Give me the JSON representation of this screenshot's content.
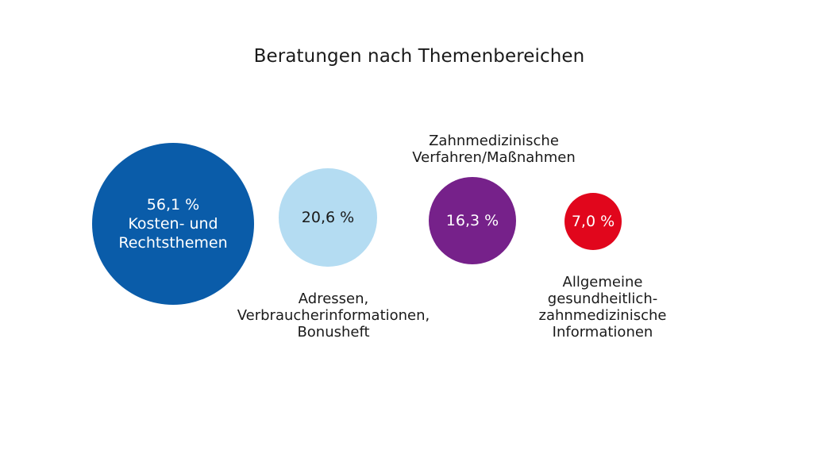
{
  "chart_data": {
    "type": "bubble",
    "title": "Beratungen nach Themenbereichen",
    "series": [
      {
        "value": 56.1,
        "value_label": "56,1 %",
        "inner_label_lines": [
          "Kosten- und",
          "Rechtsthemen"
        ],
        "outer_label_lines": [],
        "color": "#0a5ca9",
        "text_color": "#ffffff"
      },
      {
        "value": 20.6,
        "value_label": "20,6 %",
        "inner_label_lines": [],
        "outer_label_lines": [
          "Adressen,",
          "Verbraucherinformationen,",
          "Bonusheft"
        ],
        "color": "#b4dcf2",
        "text_color": "#1a1a1a"
      },
      {
        "value": 16.3,
        "value_label": "16,3 %",
        "inner_label_lines": [],
        "outer_label_lines": [
          "Zahnmedizinische",
          "Verfahren/Maßnahmen"
        ],
        "color": "#76218a",
        "text_color": "#ffffff"
      },
      {
        "value": 7.0,
        "value_label": "7,0 %",
        "inner_label_lines": [],
        "outer_label_lines": [
          "Allgemeine",
          "gesundheitlich-",
          "zahnmedizinische",
          "Informationen"
        ],
        "color": "#e1061c",
        "text_color": "#ffffff"
      }
    ]
  }
}
